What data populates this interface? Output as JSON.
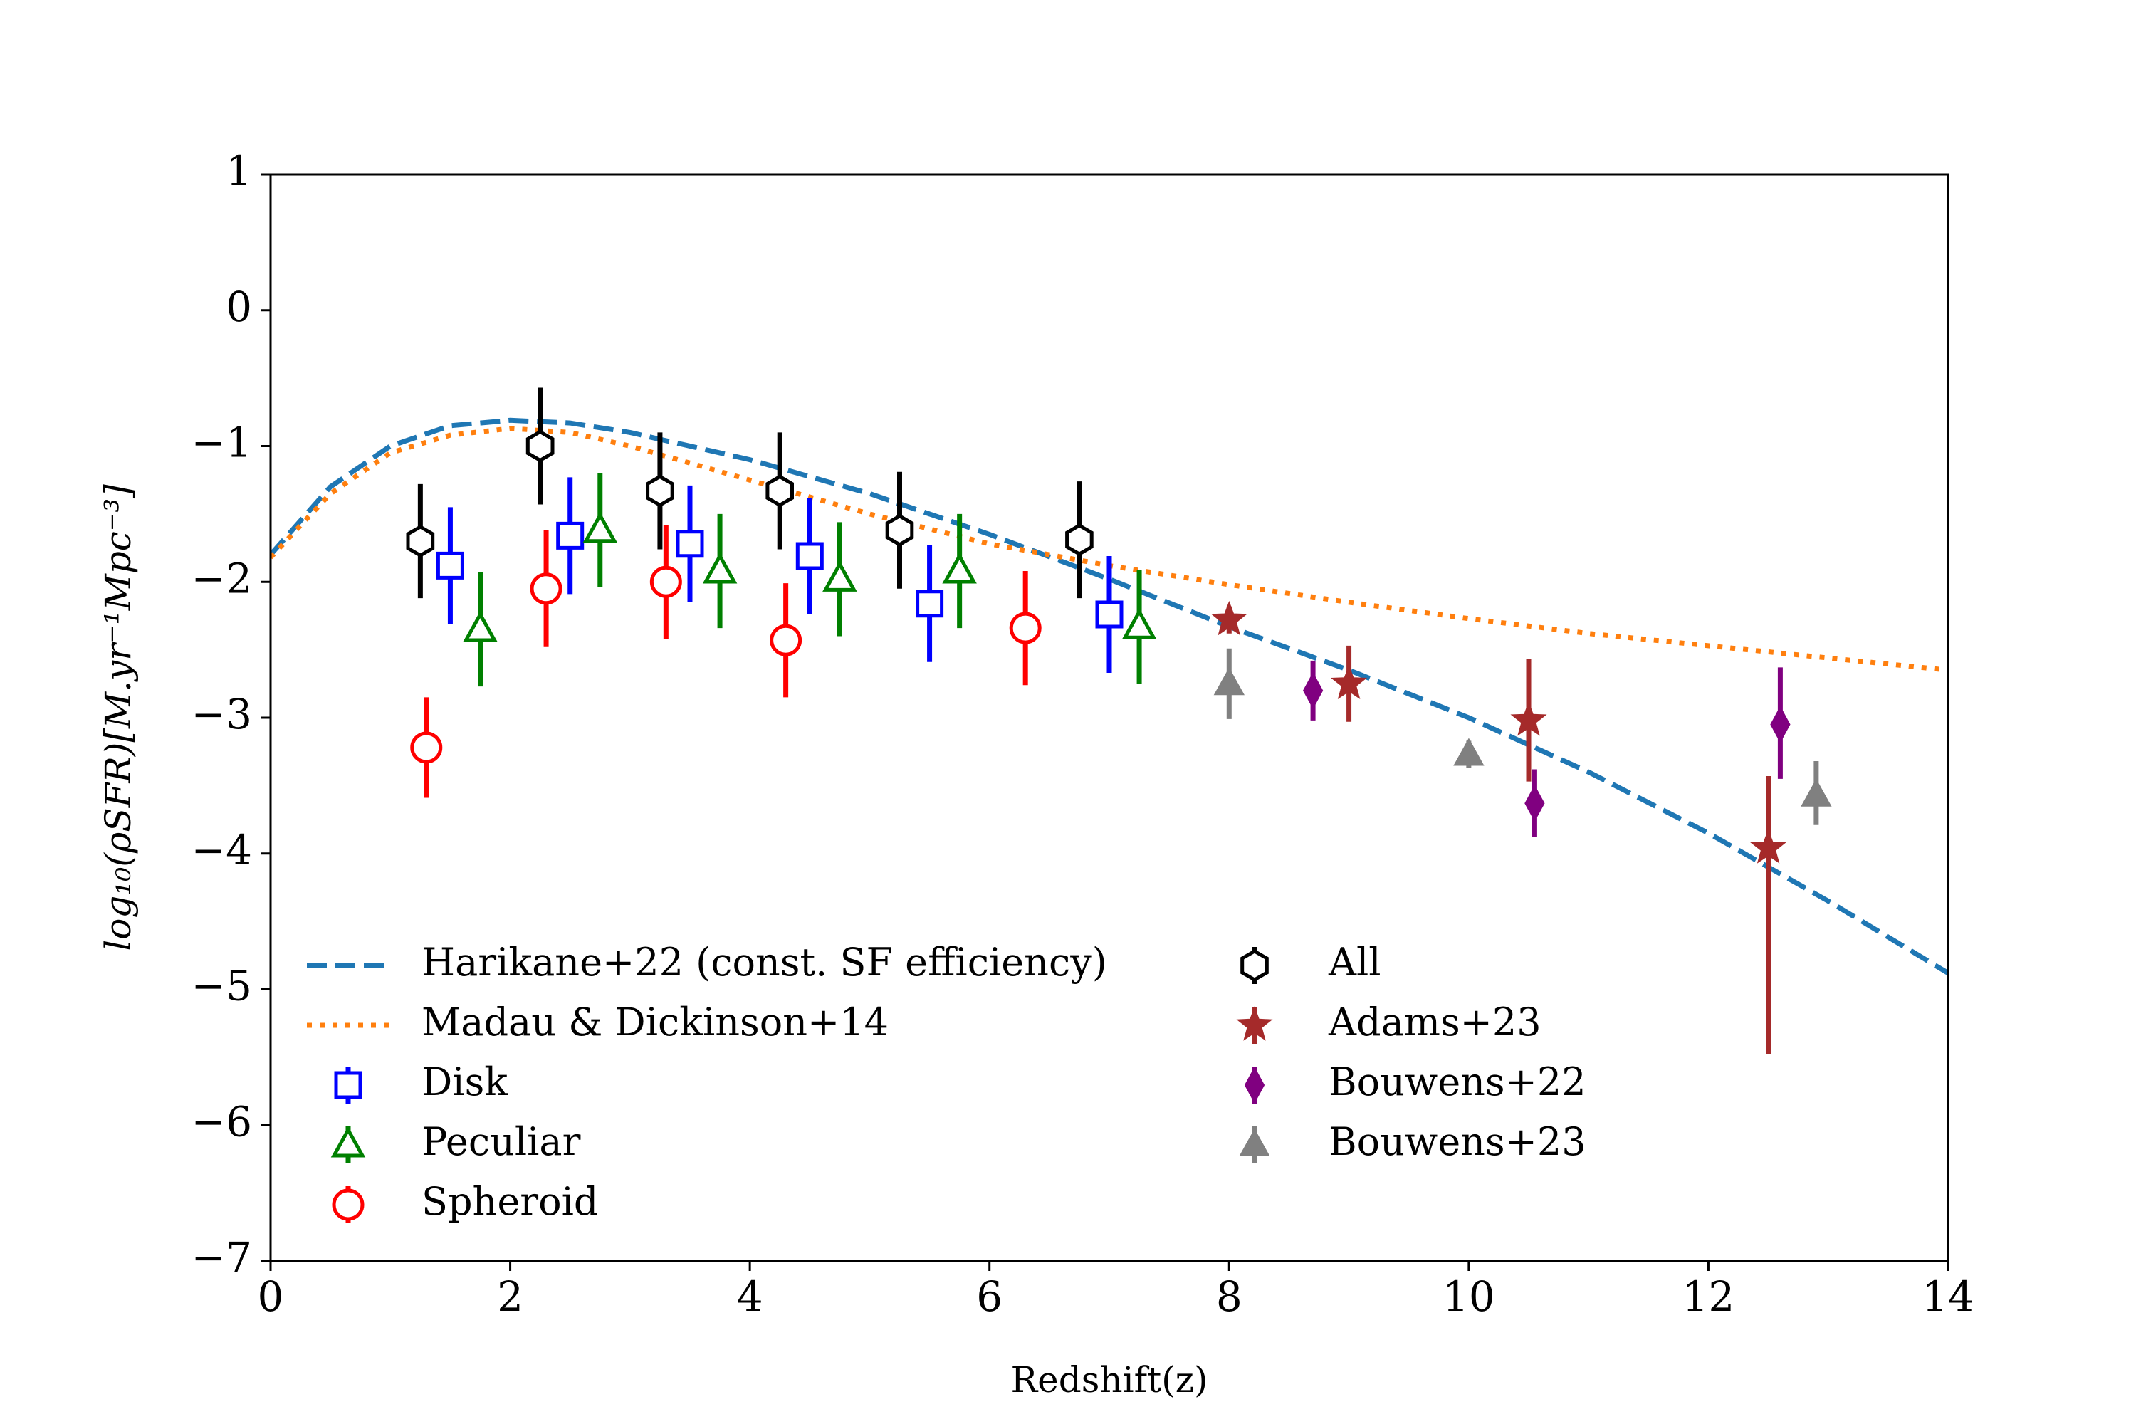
{
  "chart_data": {
    "type": "scatter",
    "xlabel": "Redshift(z)",
    "ylabel": "log₁₀(ρSFR)[M.yr⁻¹Mpc⁻³]",
    "xlim": [
      0,
      14
    ],
    "ylim": [
      -7,
      1
    ],
    "xticks": [
      0,
      2,
      4,
      6,
      8,
      10,
      12,
      14
    ],
    "yticks": [
      {
        "value": -7,
        "label": "−7"
      },
      {
        "value": -6,
        "label": "−6"
      },
      {
        "value": -5,
        "label": "−5"
      },
      {
        "value": -4,
        "label": "−4"
      },
      {
        "value": -3,
        "label": "−3"
      },
      {
        "value": -2,
        "label": "−2"
      },
      {
        "value": -1,
        "label": "−1"
      },
      0,
      1
    ],
    "legend": "lower left",
    "series": [
      {
        "name": "Harikane+22 (const. SF efficiency)",
        "kind": "line",
        "style": "dashed",
        "color": "#1f77b4",
        "x": [
          0,
          0.5,
          1,
          1.5,
          2,
          2.5,
          3,
          4,
          5,
          6,
          7,
          8,
          9,
          10,
          11,
          12,
          13,
          14
        ],
        "values": [
          -1.8,
          -1.3,
          -1.0,
          -0.85,
          -0.81,
          -0.83,
          -0.9,
          -1.1,
          -1.35,
          -1.65,
          -1.98,
          -2.33,
          -2.65,
          -3.0,
          -3.4,
          -3.85,
          -4.35,
          -4.88
        ]
      },
      {
        "name": "Madau & Dickinson+14",
        "kind": "line",
        "style": "dotted",
        "color": "#ff7f0e",
        "x": [
          0,
          0.5,
          1,
          1.5,
          2,
          2.5,
          3,
          4,
          5,
          6,
          7,
          8,
          9,
          10,
          11,
          12,
          13,
          14
        ],
        "values": [
          -1.82,
          -1.35,
          -1.05,
          -0.92,
          -0.87,
          -0.9,
          -1.0,
          -1.25,
          -1.5,
          -1.72,
          -1.88,
          -2.02,
          -2.15,
          -2.27,
          -2.38,
          -2.47,
          -2.56,
          -2.65
        ]
      },
      {
        "name": "Disk",
        "kind": "errorbar",
        "marker": "square",
        "filled": false,
        "color": "#0000ff",
        "x": [
          1.5,
          2.5,
          3.5,
          4.5,
          5.5,
          7.0
        ],
        "values": [
          -1.88,
          -1.66,
          -1.72,
          -1.81,
          -2.16,
          -2.24
        ],
        "yerr_minus": [
          0.43,
          0.43,
          0.43,
          0.43,
          0.43,
          0.43
        ],
        "yerr_plus": [
          0.43,
          0.43,
          0.43,
          0.43,
          0.43,
          0.43
        ]
      },
      {
        "name": "Peculiar",
        "kind": "errorbar",
        "marker": "triangle",
        "filled": false,
        "color": "#008000",
        "x": [
          1.75,
          2.75,
          3.75,
          4.75,
          5.75,
          7.25
        ],
        "values": [
          -2.35,
          -1.62,
          -1.92,
          -1.98,
          -1.92,
          -2.33
        ],
        "yerr_minus": [
          0.42,
          0.42,
          0.42,
          0.42,
          0.42,
          0.42
        ],
        "yerr_plus": [
          0.42,
          0.42,
          0.42,
          0.42,
          0.42,
          0.42
        ]
      },
      {
        "name": "Spheroid",
        "kind": "errorbar",
        "marker": "circle",
        "filled": false,
        "color": "#ff0000",
        "x": [
          1.3,
          2.3,
          3.3,
          4.3,
          6.3
        ],
        "values": [
          -3.22,
          -2.05,
          -2.0,
          -2.43,
          -2.34
        ],
        "yerr_minus": [
          0.37,
          0.43,
          0.42,
          0.42,
          0.42
        ],
        "yerr_plus": [
          0.37,
          0.43,
          0.42,
          0.42,
          0.42
        ]
      },
      {
        "name": "All",
        "kind": "errorbar",
        "marker": "hexagon",
        "filled": false,
        "color": "#000000",
        "x": [
          1.25,
          2.25,
          3.25,
          4.25,
          5.25,
          6.75
        ],
        "values": [
          -1.7,
          -1.0,
          -1.33,
          -1.33,
          -1.62,
          -1.69
        ],
        "yerr_minus": [
          0.42,
          0.43,
          0.43,
          0.43,
          0.43,
          0.43
        ],
        "yerr_plus": [
          0.42,
          0.43,
          0.43,
          0.43,
          0.43,
          0.43
        ]
      },
      {
        "name": "Adams+23",
        "kind": "errorbar",
        "marker": "star",
        "filled": true,
        "color": "#a52a2a",
        "x": [
          8.0,
          9.0,
          10.5,
          12.5
        ],
        "values": [
          -2.28,
          -2.75,
          -3.02,
          -3.96
        ],
        "yerr_minus": [
          0.1,
          0.28,
          0.45,
          1.52
        ],
        "yerr_plus": [
          0.1,
          0.28,
          0.45,
          0.53
        ]
      },
      {
        "name": "Bouwens+22",
        "kind": "errorbar",
        "marker": "diamond",
        "filled": true,
        "color": "#800080",
        "x": [
          8.7,
          10.55,
          12.6
        ],
        "values": [
          -2.8,
          -3.63,
          -3.05
        ],
        "yerr_minus": [
          0.22,
          0.25,
          0.4
        ],
        "yerr_plus": [
          0.22,
          0.25,
          0.42
        ]
      },
      {
        "name": "Bouwens+23",
        "kind": "errorbar",
        "marker": "triangle",
        "filled": true,
        "color": "#808080",
        "x": [
          8.0,
          10.0,
          12.9
        ],
        "values": [
          -2.75,
          -3.27,
          -3.57
        ],
        "yerr_minus": [
          0.26,
          0.1,
          0.22
        ],
        "yerr_plus": [
          0.26,
          0.1,
          0.25
        ]
      }
    ]
  }
}
